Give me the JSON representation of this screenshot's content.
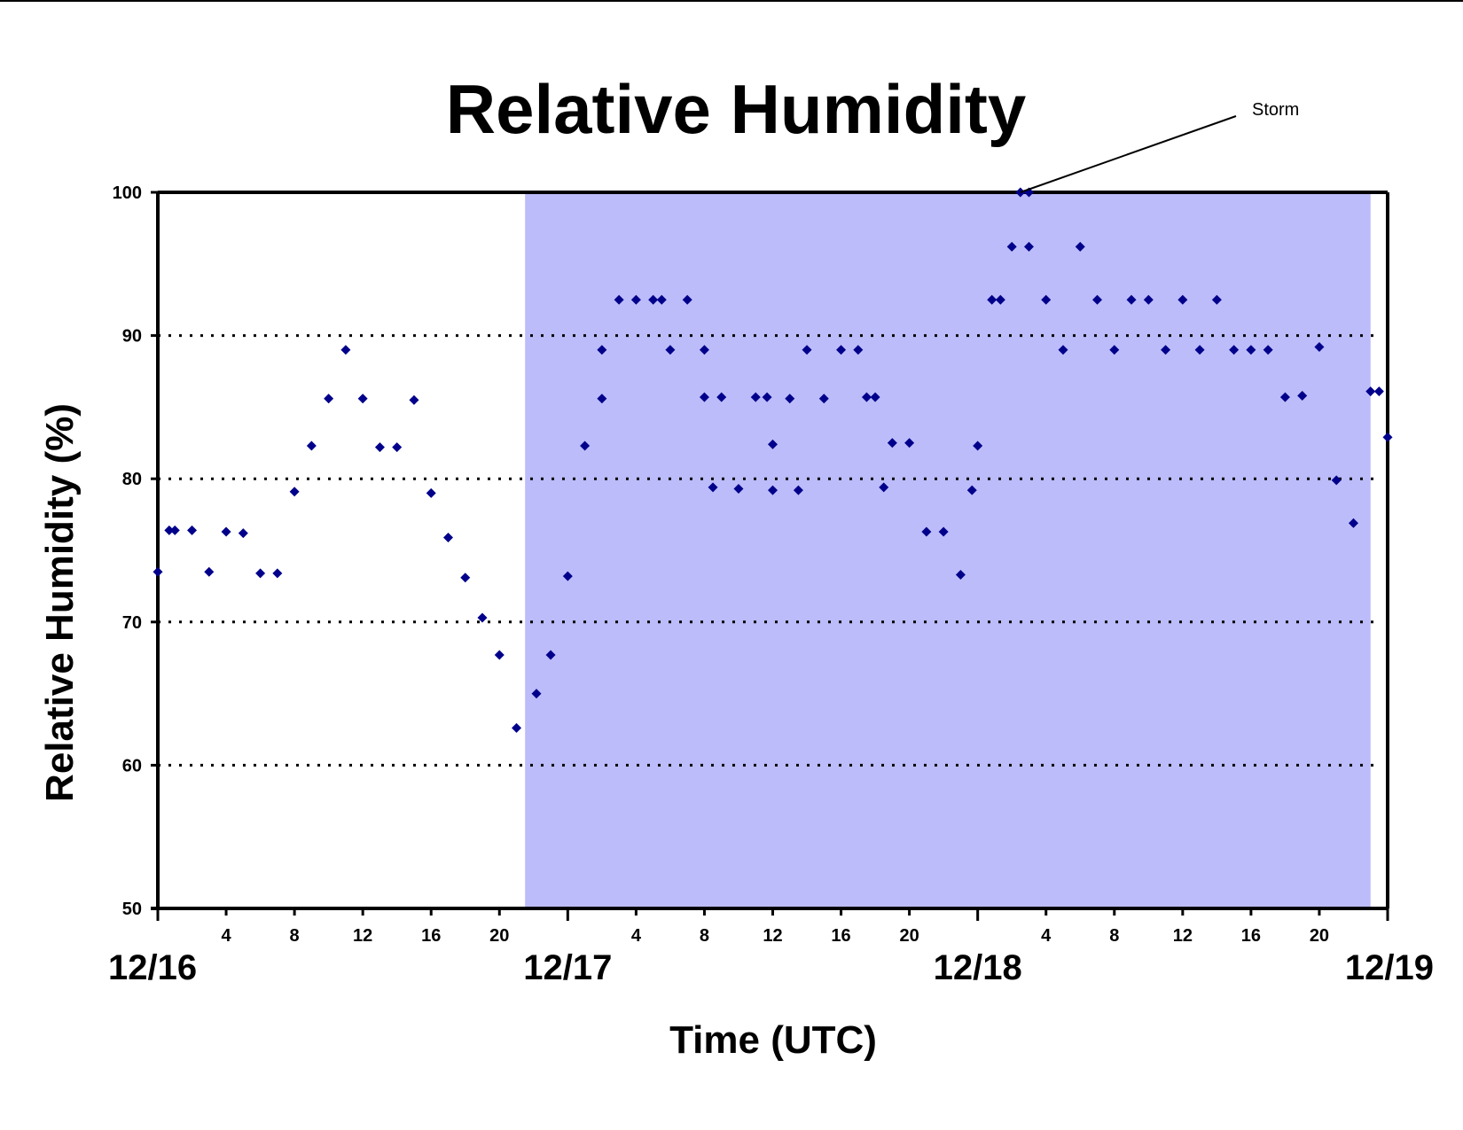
{
  "chart_data": {
    "type": "scatter",
    "title": "Relative Humidity",
    "xlabel": "Time (UTC)",
    "ylabel": "Relative Humidity (%)",
    "ylim": [
      50,
      100
    ],
    "xlim": [
      "12/16 00:00",
      "12/19 00:00"
    ],
    "yticks": [
      50,
      60,
      70,
      80,
      90,
      100
    ],
    "hour_tick_labels": [
      "4",
      "8",
      "12",
      "16",
      "20"
    ],
    "date_labels": [
      "12/16",
      "12/17",
      "12/18",
      "12/19"
    ],
    "grid": "dotted horizontal lines at 60, 70, 80, 90",
    "shaded_region": {
      "start": "12/16 21:30",
      "end": "12/18 23:00",
      "color": "#bcbcfa"
    },
    "marker_color": "#00008b",
    "annotation": {
      "text": "Storm",
      "points_to": {
        "x": "12/18 02:30",
        "y": 100
      }
    },
    "points": [
      {
        "x": "12/16 00:00",
        "y": 73.5
      },
      {
        "x": "12/16 00:40",
        "y": 76.4
      },
      {
        "x": "12/16 01:00",
        "y": 76.4
      },
      {
        "x": "12/16 02:00",
        "y": 76.4
      },
      {
        "x": "12/16 03:00",
        "y": 73.5
      },
      {
        "x": "12/16 04:00",
        "y": 76.3
      },
      {
        "x": "12/16 05:00",
        "y": 76.2
      },
      {
        "x": "12/16 06:00",
        "y": 73.4
      },
      {
        "x": "12/16 07:00",
        "y": 73.4
      },
      {
        "x": "12/16 08:00",
        "y": 79.1
      },
      {
        "x": "12/16 09:00",
        "y": 82.3
      },
      {
        "x": "12/16 10:00",
        "y": 85.6
      },
      {
        "x": "12/16 11:00",
        "y": 89.0
      },
      {
        "x": "12/16 12:00",
        "y": 85.6
      },
      {
        "x": "12/16 13:00",
        "y": 82.2
      },
      {
        "x": "12/16 14:00",
        "y": 82.2
      },
      {
        "x": "12/16 15:00",
        "y": 85.5
      },
      {
        "x": "12/16 16:00",
        "y": 79.0
      },
      {
        "x": "12/16 17:00",
        "y": 75.9
      },
      {
        "x": "12/16 18:00",
        "y": 73.1
      },
      {
        "x": "12/16 19:00",
        "y": 70.3
      },
      {
        "x": "12/16 20:00",
        "y": 67.7
      },
      {
        "x": "12/16 21:00",
        "y": 62.6
      },
      {
        "x": "12/16 22:10",
        "y": 65.0
      },
      {
        "x": "12/16 23:00",
        "y": 67.7
      },
      {
        "x": "12/17 00:00",
        "y": 73.2
      },
      {
        "x": "12/17 01:00",
        "y": 82.3
      },
      {
        "x": "12/17 02:00",
        "y": 85.6
      },
      {
        "x": "12/17 02:00",
        "y": 89.0
      },
      {
        "x": "12/17 03:00",
        "y": 92.5
      },
      {
        "x": "12/17 04:00",
        "y": 92.5
      },
      {
        "x": "12/17 05:00",
        "y": 92.5
      },
      {
        "x": "12/17 05:30",
        "y": 92.5
      },
      {
        "x": "12/17 06:00",
        "y": 89.0
      },
      {
        "x": "12/17 07:00",
        "y": 92.5
      },
      {
        "x": "12/17 08:00",
        "y": 89.0
      },
      {
        "x": "12/17 08:00",
        "y": 85.7
      },
      {
        "x": "12/17 08:30",
        "y": 79.4
      },
      {
        "x": "12/17 09:00",
        "y": 85.7
      },
      {
        "x": "12/17 10:00",
        "y": 79.3
      },
      {
        "x": "12/17 11:00",
        "y": 85.7
      },
      {
        "x": "12/17 11:40",
        "y": 85.7
      },
      {
        "x": "12/17 12:00",
        "y": 79.2
      },
      {
        "x": "12/17 12:00",
        "y": 82.4
      },
      {
        "x": "12/17 13:00",
        "y": 85.6
      },
      {
        "x": "12/17 13:30",
        "y": 79.2
      },
      {
        "x": "12/17 14:00",
        "y": 89.0
      },
      {
        "x": "12/17 15:00",
        "y": 85.6
      },
      {
        "x": "12/17 16:00",
        "y": 89.0
      },
      {
        "x": "12/17 17:00",
        "y": 89.0
      },
      {
        "x": "12/17 17:30",
        "y": 85.7
      },
      {
        "x": "12/17 18:00",
        "y": 85.7
      },
      {
        "x": "12/17 18:30",
        "y": 79.4
      },
      {
        "x": "12/17 19:00",
        "y": 82.5
      },
      {
        "x": "12/17 20:00",
        "y": 82.5
      },
      {
        "x": "12/17 21:00",
        "y": 76.3
      },
      {
        "x": "12/17 22:00",
        "y": 76.3
      },
      {
        "x": "12/17 23:00",
        "y": 73.3
      },
      {
        "x": "12/17 23:40",
        "y": 79.2
      },
      {
        "x": "12/18 00:00",
        "y": 82.3
      },
      {
        "x": "12/18 00:50",
        "y": 92.5
      },
      {
        "x": "12/18 01:20",
        "y": 92.5
      },
      {
        "x": "12/18 02:00",
        "y": 96.2
      },
      {
        "x": "12/18 02:30",
        "y": 100.0
      },
      {
        "x": "12/18 03:00",
        "y": 100.0
      },
      {
        "x": "12/18 03:00",
        "y": 96.2
      },
      {
        "x": "12/18 04:00",
        "y": 92.5
      },
      {
        "x": "12/18 05:00",
        "y": 89.0
      },
      {
        "x": "12/18 06:00",
        "y": 96.2
      },
      {
        "x": "12/18 07:00",
        "y": 92.5
      },
      {
        "x": "12/18 08:00",
        "y": 89.0
      },
      {
        "x": "12/18 09:00",
        "y": 92.5
      },
      {
        "x": "12/18 10:00",
        "y": 92.5
      },
      {
        "x": "12/18 11:00",
        "y": 89.0
      },
      {
        "x": "12/18 12:00",
        "y": 92.5
      },
      {
        "x": "12/18 13:00",
        "y": 89.0
      },
      {
        "x": "12/18 14:00",
        "y": 92.5
      },
      {
        "x": "12/18 15:00",
        "y": 89.0
      },
      {
        "x": "12/18 16:00",
        "y": 89.0
      },
      {
        "x": "12/18 17:00",
        "y": 89.0
      },
      {
        "x": "12/18 18:00",
        "y": 85.7
      },
      {
        "x": "12/18 19:00",
        "y": 85.8
      },
      {
        "x": "12/18 20:00",
        "y": 89.2
      },
      {
        "x": "12/18 21:00",
        "y": 79.9
      },
      {
        "x": "12/18 22:00",
        "y": 76.9
      },
      {
        "x": "12/18 23:00",
        "y": 86.1
      },
      {
        "x": "12/18 23:30",
        "y": 86.1
      },
      {
        "x": "12/19 00:00",
        "y": 82.9
      }
    ]
  }
}
